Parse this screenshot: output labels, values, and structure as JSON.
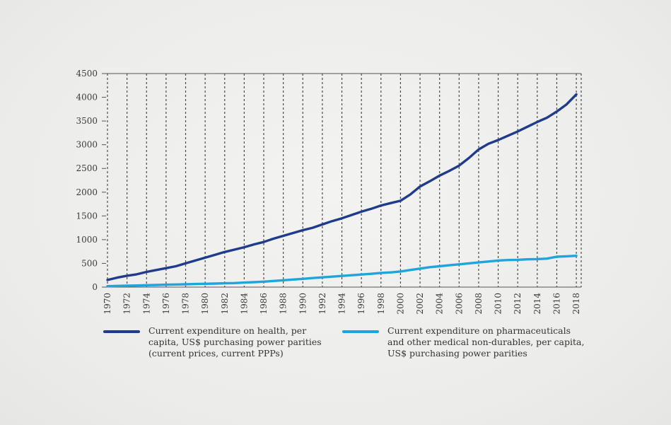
{
  "chart_data": {
    "type": "line",
    "title": "",
    "xlabel": "",
    "ylabel": "",
    "x": [
      1970,
      1971,
      1972,
      1973,
      1974,
      1975,
      1976,
      1977,
      1978,
      1979,
      1980,
      1981,
      1982,
      1983,
      1984,
      1985,
      1986,
      1987,
      1988,
      1989,
      1990,
      1991,
      1992,
      1993,
      1994,
      1995,
      1996,
      1997,
      1998,
      1999,
      2000,
      2001,
      2002,
      2003,
      2004,
      2005,
      2006,
      2007,
      2008,
      2009,
      2010,
      2011,
      2012,
      2013,
      2014,
      2015,
      2016,
      2017,
      2018
    ],
    "x_ticks": [
      "1970",
      "1972",
      "1974",
      "1976",
      "1978",
      "1980",
      "1982",
      "1984",
      "1986",
      "1988",
      "1990",
      "1992",
      "1994",
      "1996",
      "1998",
      "2000",
      "2002",
      "2004",
      "2006",
      "2008",
      "2010",
      "2012",
      "2014",
      "2016",
      "2018"
    ],
    "y_ticks": [
      "0",
      "500",
      "1000",
      "1500",
      "2000",
      "2500",
      "3000",
      "3500",
      "4000",
      "4500"
    ],
    "xlim": [
      1970,
      2018.5
    ],
    "ylim": [
      0,
      4500
    ],
    "grid": "vertical-dashed",
    "legend_position": "bottom",
    "series": [
      {
        "name": "Current expenditure on health, per\ncapita, US$ purchasing power parities\n(current prices, current PPPs)",
        "color": "#1f3b8c",
        "values": [
          150,
          200,
          240,
          270,
          320,
          360,
          400,
          440,
          500,
          560,
          620,
          680,
          740,
          790,
          840,
          900,
          950,
          1020,
          1080,
          1140,
          1200,
          1250,
          1320,
          1390,
          1450,
          1520,
          1590,
          1650,
          1720,
          1770,
          1820,
          1950,
          2120,
          2230,
          2350,
          2450,
          2560,
          2720,
          2900,
          3020,
          3100,
          3190,
          3280,
          3380,
          3480,
          3570,
          3700,
          3850,
          4060
        ]
      },
      {
        "name": "Current expenditure on pharmaceuticals\nand other medical non-durables, per capita,\nUS$ purchasing power parities",
        "color": "#1ea6dc",
        "values": [
          20,
          25,
          30,
          35,
          40,
          45,
          50,
          55,
          60,
          65,
          70,
          75,
          80,
          85,
          95,
          105,
          115,
          130,
          145,
          160,
          175,
          190,
          205,
          220,
          235,
          250,
          265,
          280,
          300,
          310,
          330,
          360,
          390,
          420,
          440,
          460,
          480,
          500,
          520,
          540,
          560,
          570,
          575,
          585,
          590,
          600,
          640,
          650,
          660
        ]
      }
    ]
  }
}
